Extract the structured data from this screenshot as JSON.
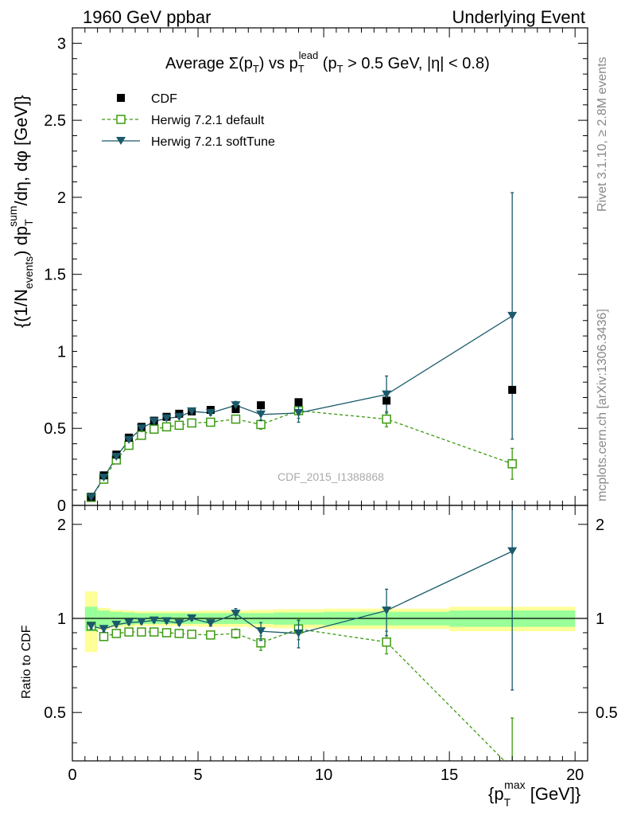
{
  "header": {
    "left": "1960 GeV ppbar",
    "right": "Underlying Event",
    "title_prefix": "Average ",
    "title_sigma": "Σ(p",
    "title_t1": "T",
    "title_mid": ") vs p",
    "title_t2": "T",
    "title_lead": "lead",
    "title_suffix_a": " (p",
    "title_t3": "T",
    "title_suffix_b": " > 0.5 GeV, |η| < 0.8)"
  },
  "side": {
    "rivet": "Rivet 3.1.10, ≥ 2.8M events",
    "mcplots": "mcplots.cern.ch [arXiv:1306.3436]"
  },
  "watermark": "CDF_2015_I1388868",
  "ylabel_main": "{(1/N_events) dp_T^sum/dη, dφ [GeV]}",
  "ylabel_ratio": "Ratio to CDF",
  "xlabel": "{p_T^max [GeV]}",
  "chart_data": {
    "type": "scatter",
    "x_range": [
      0,
      20.5
    ],
    "main_ylim": [
      0,
      3.1
    ],
    "ratio_ylim": [
      0.35,
      2.3
    ],
    "ratio_log": true,
    "x_ticks": [
      "0",
      "5",
      "10",
      "15",
      "20"
    ],
    "main_y_ticks": [
      "0",
      "0.5",
      "1",
      "1.5",
      "2",
      "2.5",
      "3"
    ],
    "ratio_y_ticks": [
      "0.5",
      "1",
      "2"
    ],
    "legend": [
      "CDF",
      "Herwig 7.2.1 default",
      "Herwig 7.2.1 softTune"
    ],
    "colors": {
      "cdf": "#000000",
      "default": "#3b9b0f",
      "softtune": "#1a5a6a",
      "band_inner": "#99ff99",
      "band_outer": "#ffff99"
    },
    "series": [
      {
        "name": "CDF",
        "x": [
          0.75,
          1.25,
          1.75,
          2.25,
          2.75,
          3.25,
          3.75,
          4.25,
          4.75,
          5.5,
          6.5,
          7.5,
          9.0,
          12.5,
          17.5
        ],
        "values": [
          0.055,
          0.195,
          0.33,
          0.44,
          0.51,
          0.55,
          0.575,
          0.595,
          0.61,
          0.62,
          0.625,
          0.65,
          0.67,
          0.68,
          0.75
        ],
        "xerr": [
          0.25,
          0.25,
          0.25,
          0.25,
          0.25,
          0.25,
          0.25,
          0.25,
          0.25,
          0.5,
          0.5,
          0.5,
          1.0,
          2.5,
          2.5
        ]
      },
      {
        "name": "Herwig 7.2.1 default",
        "x": [
          0.75,
          1.25,
          1.75,
          2.25,
          2.75,
          3.25,
          3.75,
          4.25,
          4.75,
          5.5,
          6.5,
          7.5,
          9.0,
          12.5,
          17.5
        ],
        "values": [
          0.052,
          0.17,
          0.295,
          0.39,
          0.455,
          0.495,
          0.51,
          0.52,
          0.535,
          0.54,
          0.56,
          0.525,
          0.615,
          0.56,
          0.27
        ],
        "yerr": [
          0.005,
          0.01,
          0.01,
          0.01,
          0.01,
          0.01,
          0.01,
          0.01,
          0.01,
          0.012,
          0.02,
          0.03,
          0.05,
          0.05,
          0.1
        ]
      },
      {
        "name": "Herwig 7.2.1 softTune",
        "x": [
          0.75,
          1.25,
          1.75,
          2.25,
          2.75,
          3.25,
          3.75,
          4.25,
          4.75,
          5.5,
          6.5,
          7.5,
          9.0,
          12.5,
          17.5
        ],
        "values": [
          0.052,
          0.18,
          0.315,
          0.425,
          0.5,
          0.545,
          0.565,
          0.575,
          0.61,
          0.6,
          0.65,
          0.59,
          0.6,
          0.72,
          1.23
        ],
        "yerr": [
          0.005,
          0.01,
          0.01,
          0.01,
          0.01,
          0.01,
          0.01,
          0.01,
          0.01,
          0.015,
          0.025,
          0.04,
          0.06,
          0.12,
          0.8
        ]
      }
    ],
    "ratio": {
      "default": [
        0.945,
        0.875,
        0.895,
        0.905,
        0.905,
        0.905,
        0.9,
        0.895,
        0.89,
        0.885,
        0.895,
        0.835,
        0.925,
        0.84,
        0.33
      ],
      "default_err": [
        0.02,
        0.02,
        0.015,
        0.015,
        0.015,
        0.015,
        0.015,
        0.015,
        0.015,
        0.015,
        0.03,
        0.045,
        0.07,
        0.07,
        0.15
      ],
      "softtune": [
        0.945,
        0.925,
        0.955,
        0.97,
        0.975,
        0.985,
        0.98,
        0.965,
        1.0,
        0.965,
        1.035,
        0.91,
        0.895,
        1.06,
        1.64
      ],
      "softtune_err": [
        0.02,
        0.02,
        0.015,
        0.015,
        0.015,
        0.015,
        0.015,
        0.015,
        0.015,
        0.02,
        0.04,
        0.06,
        0.09,
        0.18,
        1.05
      ],
      "band_edges": [
        0.5,
        1.0,
        1.5,
        2.0,
        2.5,
        3.0,
        3.5,
        4.0,
        4.5,
        5.0,
        6.0,
        7.0,
        8.0,
        10.0,
        15.0,
        20.0
      ],
      "band_inner": [
        0.09,
        0.06,
        0.05,
        0.045,
        0.04,
        0.04,
        0.04,
        0.04,
        0.04,
        0.04,
        0.04,
        0.04,
        0.045,
        0.05,
        0.06
      ],
      "band_outer": [
        0.22,
        0.08,
        0.065,
        0.06,
        0.055,
        0.055,
        0.055,
        0.055,
        0.055,
        0.06,
        0.06,
        0.065,
        0.07,
        0.075,
        0.09
      ]
    }
  }
}
